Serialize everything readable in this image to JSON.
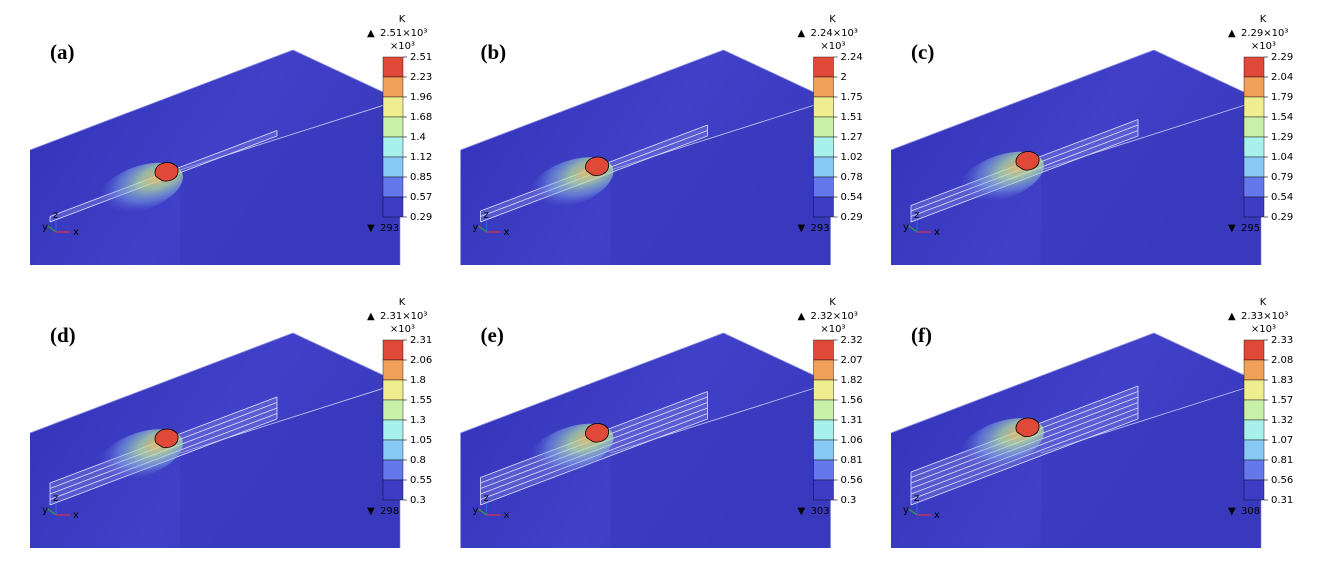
{
  "unit": "K",
  "scale_label": "×10³",
  "triad": {
    "x": "x",
    "y": "y",
    "z": "z"
  },
  "panels": [
    {
      "label": "(a)",
      "max_label": "2.51×10³",
      "min_label": "293",
      "ticks": [
        "2.51",
        "2.23",
        "1.96",
        "1.68",
        "1.4",
        "1.12",
        "0.85",
        "0.57",
        "0.29"
      ]
    },
    {
      "label": "(b)",
      "max_label": "2.24×10³",
      "min_label": "293",
      "ticks": [
        "2.24",
        "2",
        "1.75",
        "1.51",
        "1.27",
        "1.02",
        "0.78",
        "0.54",
        "0.29"
      ]
    },
    {
      "label": "(c)",
      "max_label": "2.29×10³",
      "min_label": "295",
      "ticks": [
        "2.29",
        "2.04",
        "1.79",
        "1.54",
        "1.29",
        "1.04",
        "0.79",
        "0.54",
        "0.29"
      ]
    },
    {
      "label": "(d)",
      "max_label": "2.31×10³",
      "min_label": "298",
      "ticks": [
        "2.31",
        "2.06",
        "1.8",
        "1.55",
        "1.3",
        "1.05",
        "0.8",
        "0.55",
        "0.3"
      ]
    },
    {
      "label": "(e)",
      "max_label": "2.32×10³",
      "min_label": "303",
      "ticks": [
        "2.32",
        "2.07",
        "1.82",
        "1.56",
        "1.31",
        "1.06",
        "0.81",
        "0.56",
        "0.3"
      ]
    },
    {
      "label": "(f)",
      "max_label": "2.33×10³",
      "min_label": "308",
      "ticks": [
        "2.33",
        "2.08",
        "1.83",
        "1.57",
        "1.32",
        "1.07",
        "0.81",
        "0.56",
        "0.31"
      ]
    }
  ]
}
